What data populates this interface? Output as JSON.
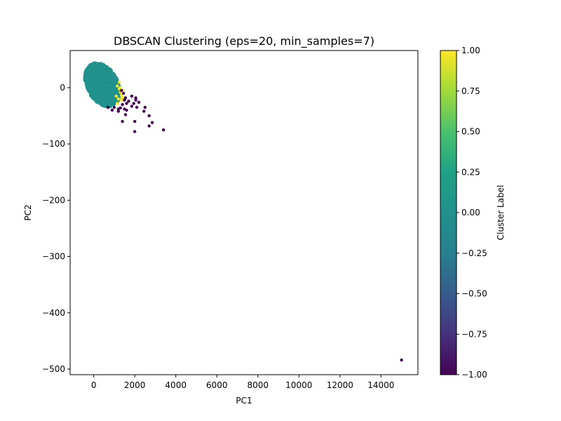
{
  "chart_data": {
    "type": "scatter",
    "title": "DBSCAN Clustering (eps=20, min_samples=7)",
    "xlabel": "PC1",
    "ylabel": "PC2",
    "xlim": [
      -1150,
      15800
    ],
    "ylim": [
      -510,
      66
    ],
    "xticks": [
      0,
      2000,
      4000,
      6000,
      8000,
      10000,
      12000,
      14000
    ],
    "yticks": [
      0,
      -100,
      -200,
      -300,
      -400,
      -500
    ],
    "grid": false,
    "colorbar": {
      "label": "Cluster Label",
      "colormap": "viridis",
      "range": [
        -1,
        1
      ],
      "ticks": [
        1.0,
        0.75,
        0.5,
        0.25,
        0.0,
        -0.25,
        -0.5,
        -0.75,
        -1.0
      ],
      "tick_labels": [
        "1.00",
        "0.75",
        "0.50",
        "0.25",
        "0.00",
        "−0.25",
        "−0.50",
        "−0.75",
        "−1.00"
      ]
    },
    "clusters": [
      {
        "label": 0,
        "color": "#21918c",
        "region": {
          "x_min": -450,
          "x_max": 1300,
          "y_min": -32,
          "y_max": 42
        }
      },
      {
        "label": 1,
        "color": "#fde725",
        "points": [
          [
            1150,
            3
          ],
          [
            1250,
            -2
          ],
          [
            1300,
            -8
          ],
          [
            1350,
            -14
          ],
          [
            1200,
            -20
          ],
          [
            1400,
            -5
          ],
          [
            1250,
            10
          ],
          [
            1300,
            0
          ],
          [
            1350,
            -22
          ],
          [
            1150,
            -28
          ],
          [
            1100,
            -15
          ],
          [
            1400,
            -18
          ]
        ]
      },
      {
        "label": -1,
        "color": "#440154",
        "points": [
          [
            1350,
            -5
          ],
          [
            1450,
            -10
          ],
          [
            1550,
            -18
          ],
          [
            1600,
            -28
          ],
          [
            1500,
            -22
          ],
          [
            1700,
            -24
          ],
          [
            1400,
            -30
          ],
          [
            1300,
            -36
          ],
          [
            1200,
            -38
          ],
          [
            1000,
            -35
          ],
          [
            700,
            -35
          ],
          [
            900,
            -40
          ],
          [
            1500,
            -38
          ],
          [
            1550,
            -48
          ],
          [
            1200,
            -42
          ],
          [
            1400,
            -60
          ],
          [
            2000,
            -60
          ],
          [
            1850,
            -33
          ],
          [
            1950,
            -28
          ],
          [
            2050,
            -22
          ],
          [
            2200,
            -26
          ],
          [
            2100,
            -35
          ],
          [
            2450,
            -42
          ],
          [
            2500,
            -35
          ],
          [
            2700,
            -50
          ],
          [
            2700,
            -68
          ],
          [
            2850,
            -62
          ],
          [
            2000,
            -78
          ],
          [
            3400,
            -75
          ],
          [
            1850,
            -15
          ],
          [
            2050,
            -18
          ],
          [
            1600,
            -40
          ],
          [
            15000,
            -484
          ]
        ]
      }
    ]
  }
}
